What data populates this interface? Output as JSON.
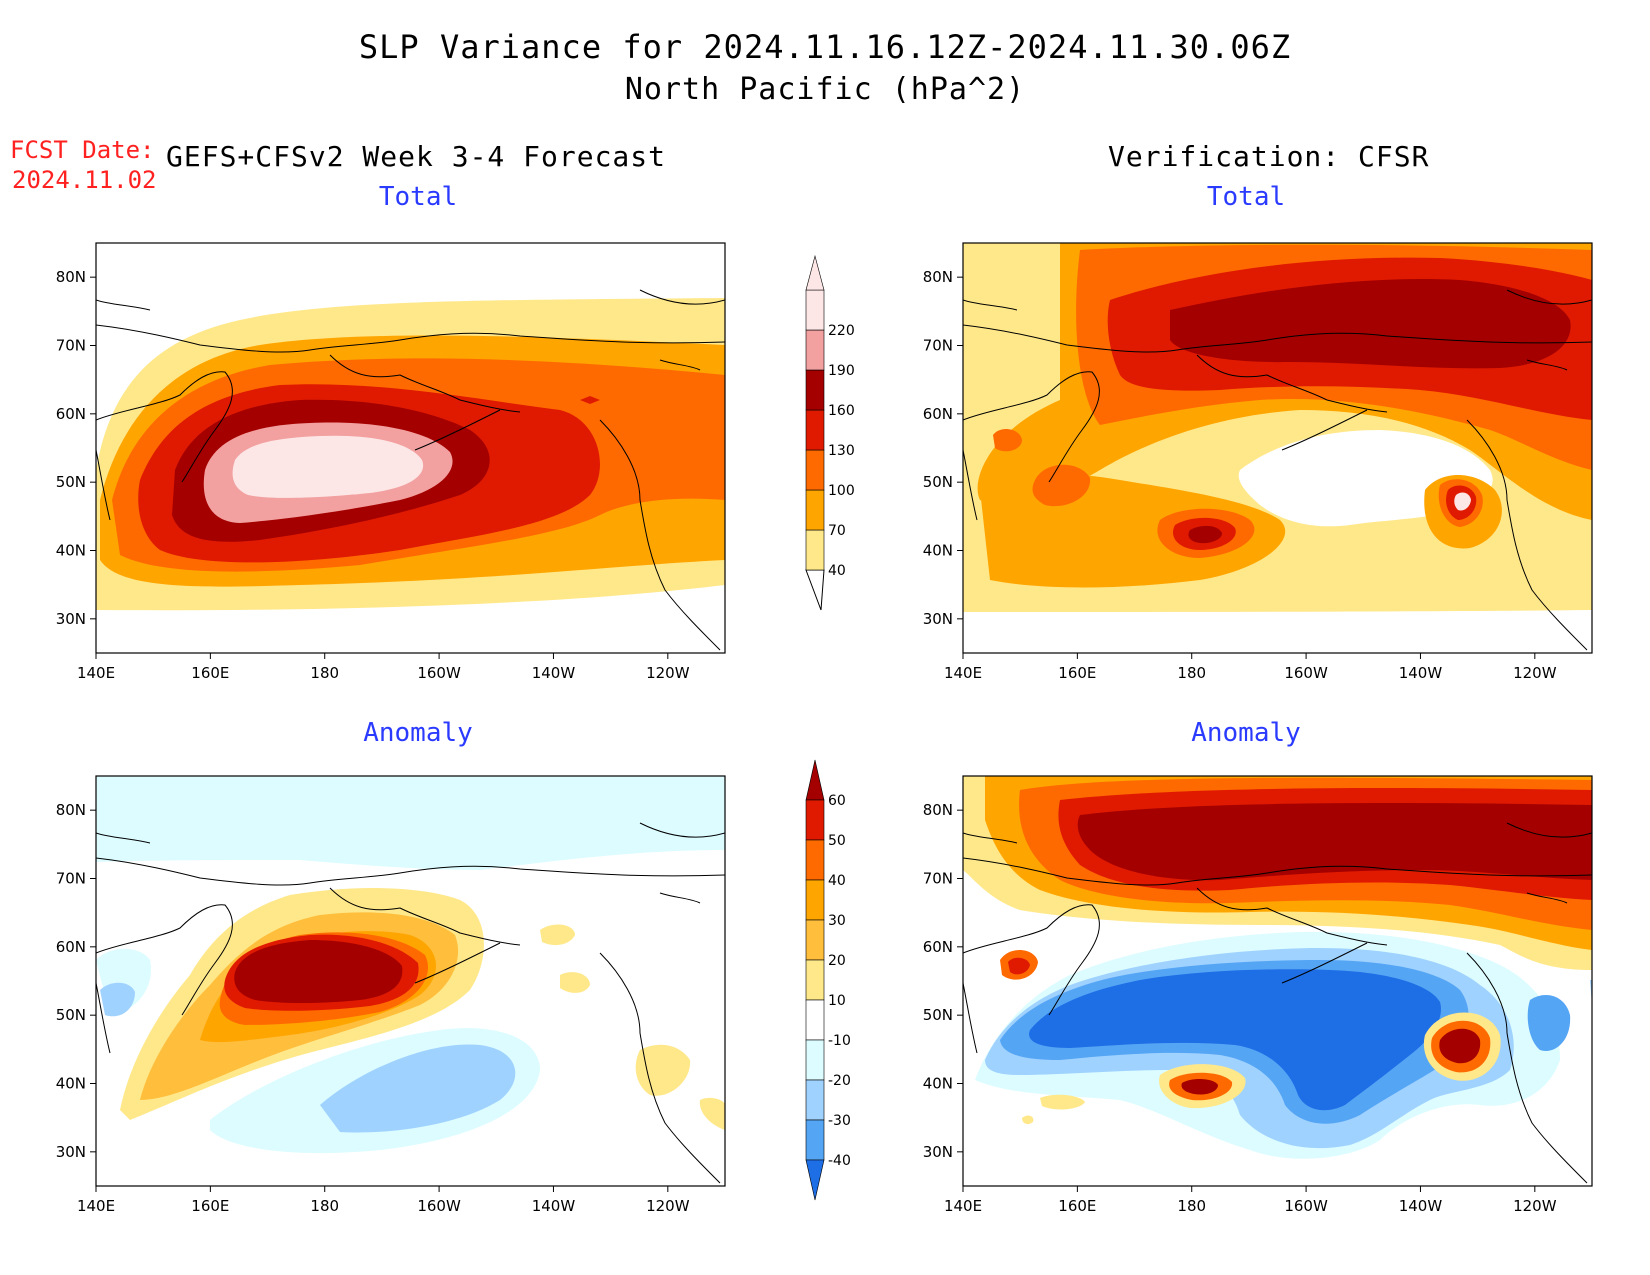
{
  "title": {
    "line1": "SLP Variance for 2024.11.16.12Z-2024.11.30.06Z",
    "line2": "North Pacific (hPa^2)"
  },
  "forecast_date": {
    "label": "FCST Date:",
    "value": "2024.11.02"
  },
  "columns": {
    "left": "GEFS+CFSv2 Week 3-4 Forecast",
    "right": "Verification: CFSR"
  },
  "panel_titles": {
    "top_left": "Total",
    "top_right": "Total",
    "bottom_left": "Anomaly",
    "bottom_right": "Anomaly"
  },
  "axes": {
    "lon_ticks": [
      "140E",
      "160E",
      "180",
      "160W",
      "140W",
      "120W"
    ],
    "lat_ticks": [
      "80N",
      "70N",
      "60N",
      "50N",
      "40N",
      "30N"
    ],
    "lon_values": [
      140,
      160,
      180,
      200,
      220,
      240
    ],
    "lat_values": [
      80,
      70,
      60,
      50,
      40,
      30
    ],
    "lon_range": [
      140,
      250
    ],
    "lat_range": [
      25,
      85
    ]
  },
  "colorbars": {
    "total": {
      "labels": [
        "40",
        "70",
        "100",
        "130",
        "160",
        "190",
        "220"
      ],
      "colors": [
        "#ffe88a",
        "#ffa500",
        "#ff6a00",
        "#e01a00",
        "#a50000",
        "#f2a0a0",
        "#fde6e6"
      ]
    },
    "anomaly": {
      "labels": [
        "60",
        "50",
        "40",
        "30",
        "20",
        "10",
        "-10",
        "-20",
        "-30",
        "-40"
      ],
      "colors": [
        "#a50000",
        "#e01a00",
        "#ff6a00",
        "#ffa500",
        "#ffbe3c",
        "#ffe88a",
        "#ffffff",
        "#dcfcff",
        "#a0d2ff",
        "#55a5f5",
        "#1e6ee6"
      ]
    }
  },
  "palette": {
    "total_levels": [
      "#ffe88a",
      "#ffa500",
      "#ff6a00",
      "#e01a00",
      "#a50000",
      "#f2a0a0",
      "#fde6e6"
    ],
    "anom_pos": [
      "#ffe88a",
      "#ffbe3c",
      "#ffa500",
      "#ff6a00",
      "#e01a00",
      "#a50000"
    ],
    "anom_neg": [
      "#dcfcff",
      "#a0d2ff",
      "#55a5f5",
      "#1e6ee6"
    ]
  }
}
